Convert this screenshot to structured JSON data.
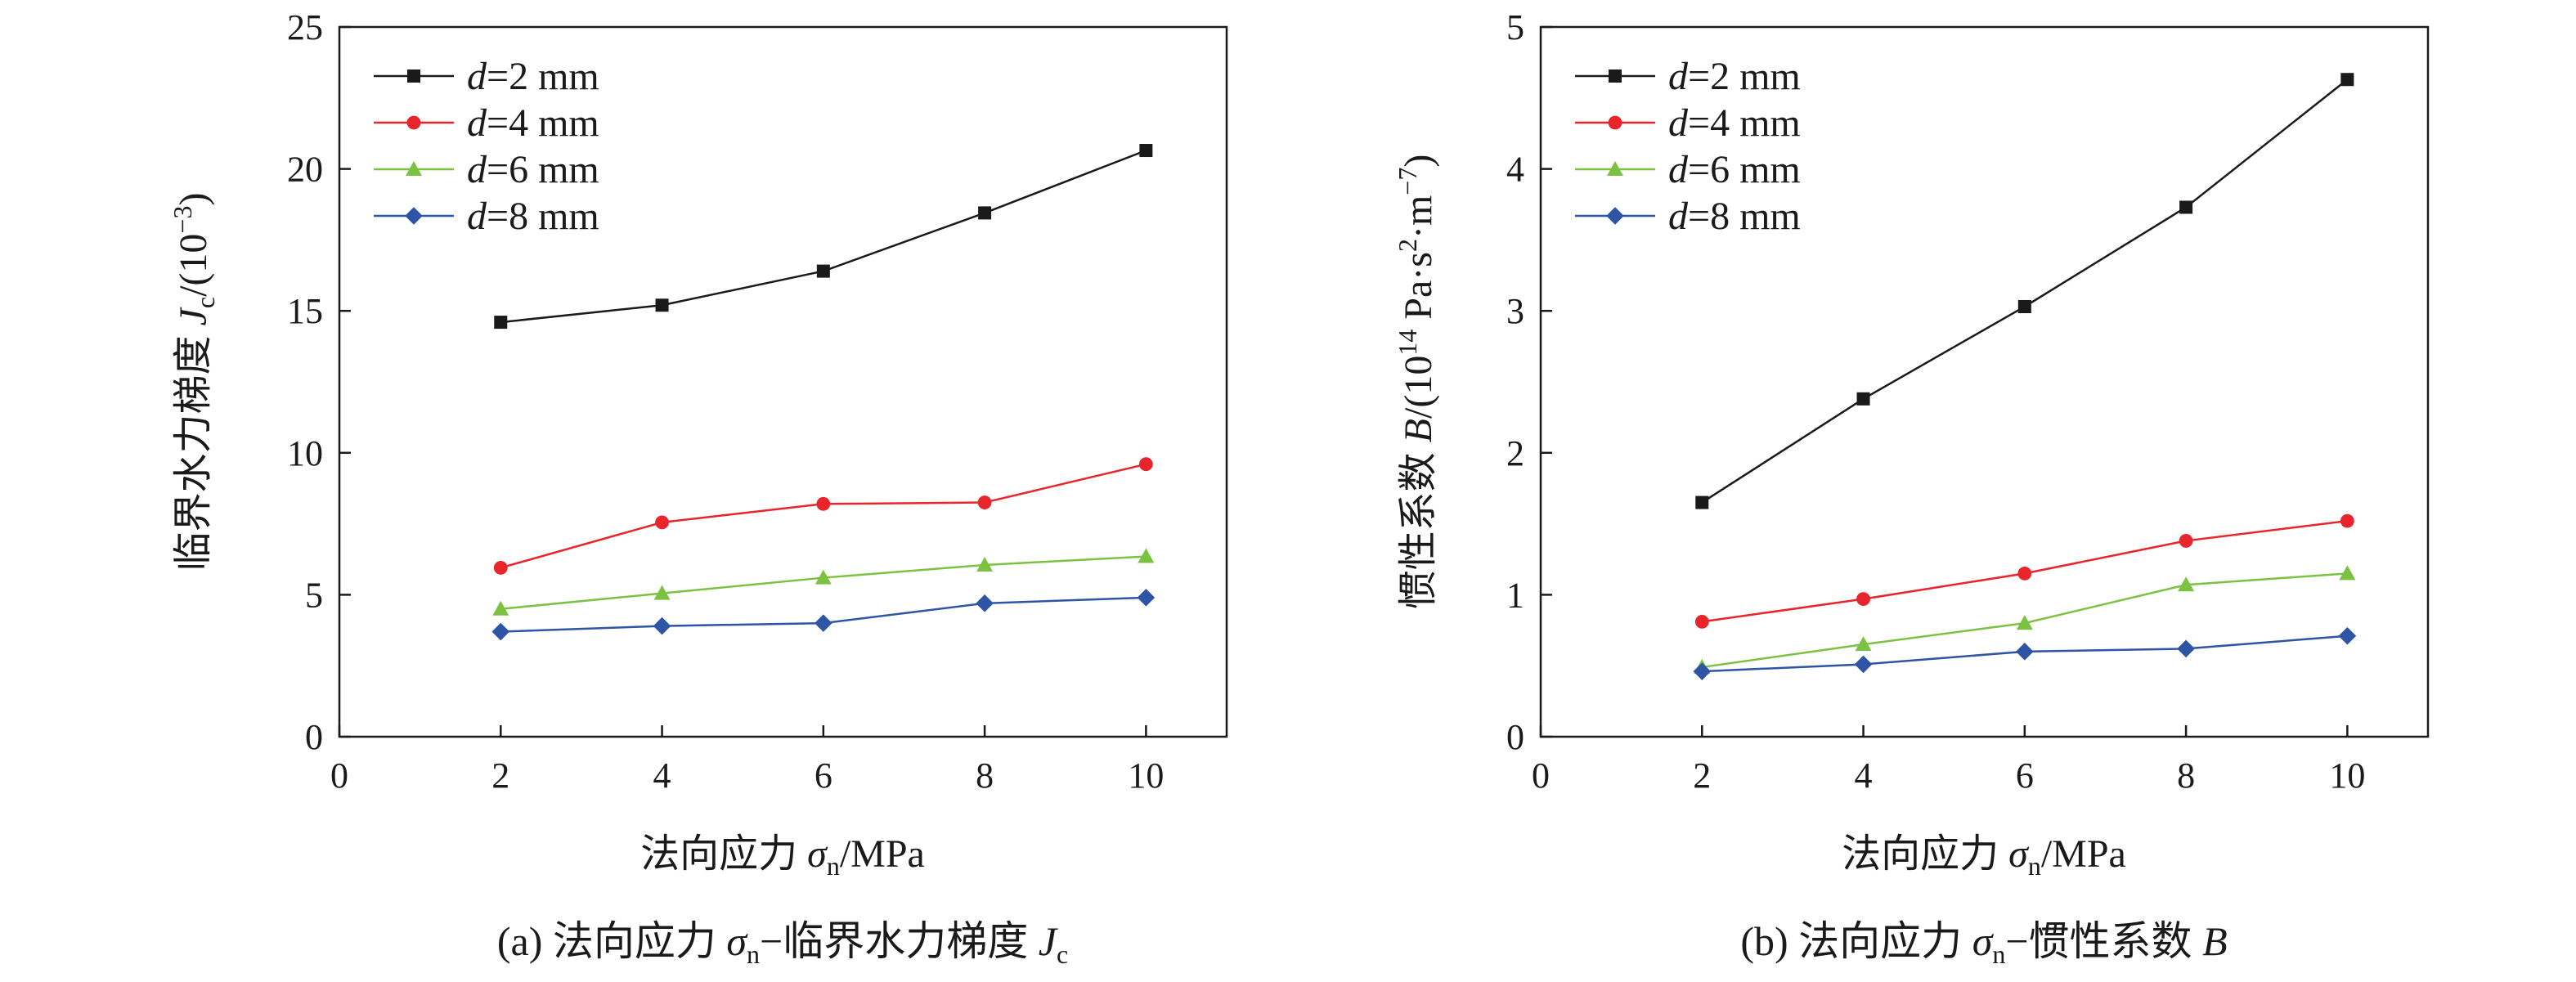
{
  "colors": {
    "d2": "#1a1a1a",
    "d4": "#e8252a",
    "d6": "#7cc242",
    "d8": "#2e55a5"
  },
  "panels": [
    {
      "caption": {
        "prefix": "(a) 法向应力 ",
        "sym": "σ",
        "sub": "n",
        "dash": "−临界水力梯度 ",
        "var": "J",
        "var_sub": "c"
      },
      "xlabel": {
        "cn": "法向应力 ",
        "sym": "σ",
        "sub": "n",
        "unit": "/MPa"
      },
      "ylabel": {
        "cn": "临界水力梯度 ",
        "var": "J",
        "var_sub": "c",
        "unit_pre": "/(10",
        "unit_sup": "−3",
        "unit_post": ")"
      }
    },
    {
      "caption": {
        "prefix": "(b) 法向应力 ",
        "sym": "σ",
        "sub": "n",
        "dash": "−惯性系数 ",
        "var": "B",
        "var_sub": ""
      },
      "xlabel": {
        "cn": "法向应力 ",
        "sym": "σ",
        "sub": "n",
        "unit": "/MPa"
      },
      "ylabel": {
        "cn": "惯性系数 ",
        "var": "B",
        "unit_pre": "/(10",
        "unit_sup": "14",
        "unit_mid": " Pa·s",
        "unit_sup2": "2",
        "unit_mid2": "·m",
        "unit_sup3": "−7",
        "unit_post": ")"
      }
    }
  ],
  "chart_data": [
    {
      "type": "line",
      "xlim": [
        0,
        11
      ],
      "ylim": [
        0,
        25
      ],
      "xticks": [
        0,
        2,
        4,
        6,
        8,
        10
      ],
      "yticks": [
        0,
        5,
        10,
        15,
        20,
        25
      ],
      "legend_position": "top-left",
      "grid": false,
      "x": [
        2,
        4,
        6,
        8,
        10
      ],
      "series": [
        {
          "name": "d=2 mm",
          "var": "d",
          "rest": "=2 mm",
          "color": "#1a1a1a",
          "marker": "square",
          "values": [
            14.6,
            15.2,
            16.4,
            18.45,
            20.65
          ]
        },
        {
          "name": "d=4 mm",
          "var": "d",
          "rest": "=4 mm",
          "color": "#e8252a",
          "marker": "circle",
          "values": [
            5.95,
            7.55,
            8.2,
            8.25,
            9.6
          ]
        },
        {
          "name": "d=6 mm",
          "var": "d",
          "rest": "=6 mm",
          "color": "#7cc242",
          "marker": "triangle",
          "values": [
            4.5,
            5.05,
            5.6,
            6.05,
            6.35
          ]
        },
        {
          "name": "d=8 mm",
          "var": "d",
          "rest": "=8 mm",
          "color": "#2e55a5",
          "marker": "diamond",
          "values": [
            3.7,
            3.9,
            4.0,
            4.7,
            4.9
          ]
        }
      ]
    },
    {
      "type": "line",
      "xlim": [
        0,
        11
      ],
      "ylim": [
        0,
        5
      ],
      "xticks": [
        0,
        2,
        4,
        6,
        8,
        10
      ],
      "yticks": [
        0,
        1,
        2,
        3,
        4,
        5
      ],
      "legend_position": "top-left",
      "grid": false,
      "x": [
        2,
        4,
        6,
        8,
        10
      ],
      "series": [
        {
          "name": "d=2 mm",
          "var": "d",
          "rest": "=2 mm",
          "color": "#1a1a1a",
          "marker": "square",
          "values": [
            1.65,
            2.38,
            3.03,
            3.73,
            4.63
          ]
        },
        {
          "name": "d=4 mm",
          "var": "d",
          "rest": "=4 mm",
          "color": "#e8252a",
          "marker": "circle",
          "values": [
            0.81,
            0.97,
            1.15,
            1.38,
            1.52
          ]
        },
        {
          "name": "d=6 mm",
          "var": "d",
          "rest": "=6 mm",
          "color": "#7cc242",
          "marker": "triangle",
          "values": [
            0.49,
            0.65,
            0.8,
            1.07,
            1.15
          ]
        },
        {
          "name": "d=8 mm",
          "var": "d",
          "rest": "=8 mm",
          "color": "#2e55a5",
          "marker": "diamond",
          "values": [
            0.46,
            0.51,
            0.6,
            0.62,
            0.71
          ]
        }
      ]
    }
  ]
}
